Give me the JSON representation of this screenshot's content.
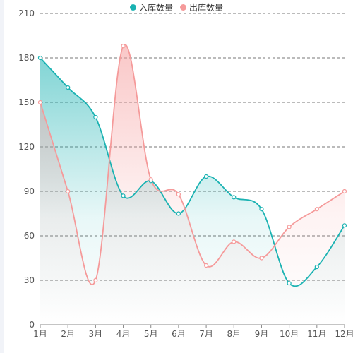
{
  "chart_data": {
    "type": "line",
    "categories": [
      "1月",
      "2月",
      "3月",
      "4月",
      "5月",
      "6月",
      "7月",
      "8月",
      "9月",
      "10月",
      "11月",
      "12月"
    ],
    "series": [
      {
        "name": "入库数量",
        "values": [
          180,
          160,
          140,
          87,
          97,
          75,
          100,
          86,
          78,
          28,
          39,
          67
        ],
        "color": "#1ab2b2"
      },
      {
        "name": "出库数量",
        "values": [
          150,
          90,
          30,
          188,
          98,
          88,
          40,
          56,
          45,
          66,
          78,
          90
        ],
        "color": "#f59a9a"
      }
    ],
    "title": "",
    "xlabel": "",
    "ylabel": "",
    "ylim": [
      0,
      210
    ],
    "yticks": [
      0,
      30,
      60,
      90,
      120,
      150,
      180,
      210
    ],
    "grid": true,
    "legend_position": "top-center",
    "smooth": true,
    "area_fill": true
  },
  "legend": {
    "items": [
      {
        "label": "入库数量",
        "color": "#1ab2b2"
      },
      {
        "label": "出库数量",
        "color": "#f59a9a"
      }
    ]
  }
}
